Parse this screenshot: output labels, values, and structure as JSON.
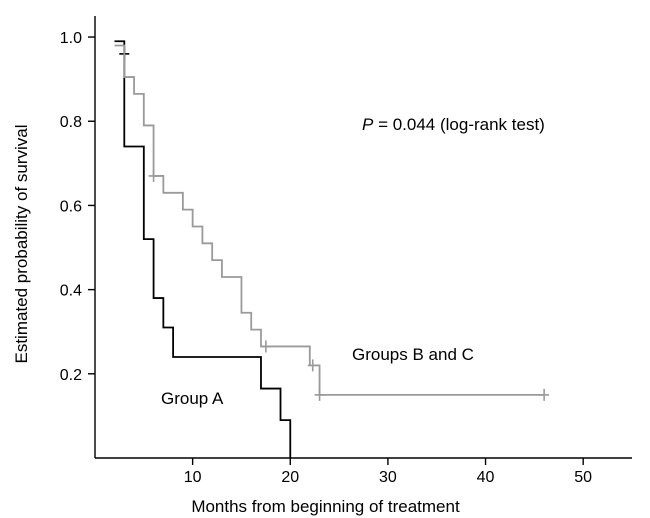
{
  "chart_data": {
    "type": "line",
    "subtype": "kaplan-meier-step",
    "xlabel": "Months from beginning of treatment",
    "ylabel": "Estimated probability of survival",
    "xlim": [
      0,
      55
    ],
    "ylim": [
      0,
      1.05
    ],
    "xticks": [
      10,
      20,
      30,
      40,
      50
    ],
    "yticks": [
      0.2,
      0.4,
      0.6,
      0.8,
      1.0
    ],
    "xtick_labels": [
      "10",
      "20",
      "30",
      "40",
      "50"
    ],
    "ytick_labels": [
      "0.2",
      "0.4",
      "0.6",
      "0.8",
      "1.0"
    ],
    "grid": false,
    "annotation": {
      "prefix": "P",
      "text": " = 0.044 (log-rank test)"
    },
    "series": [
      {
        "name": "Group A",
        "color": "#000000",
        "steps": [
          [
            2,
            0.99
          ],
          [
            3,
            0.74
          ],
          [
            5,
            0.52
          ],
          [
            6,
            0.38
          ],
          [
            7,
            0.31
          ],
          [
            8,
            0.24
          ],
          [
            17,
            0.165
          ],
          [
            19,
            0.09
          ],
          [
            20,
            0.0
          ]
        ],
        "censored": [
          [
            3,
            0.96
          ]
        ]
      },
      {
        "name": "Groups B and C",
        "color": "#9a9a9a",
        "steps": [
          [
            2,
            0.98
          ],
          [
            3,
            0.905
          ],
          [
            4,
            0.865
          ],
          [
            5,
            0.79
          ],
          [
            6,
            0.67
          ],
          [
            7,
            0.63
          ],
          [
            9,
            0.59
          ],
          [
            10,
            0.55
          ],
          [
            11,
            0.51
          ],
          [
            12,
            0.47
          ],
          [
            13,
            0.43
          ],
          [
            15,
            0.345
          ],
          [
            16,
            0.305
          ],
          [
            17,
            0.265
          ],
          [
            22,
            0.22
          ],
          [
            23,
            0.15
          ],
          [
            46,
            0.15
          ]
        ],
        "censored": [
          [
            6,
            0.67
          ],
          [
            17.5,
            0.265
          ],
          [
            22.3,
            0.22
          ],
          [
            23,
            0.15
          ],
          [
            46,
            0.15
          ]
        ]
      }
    ]
  }
}
